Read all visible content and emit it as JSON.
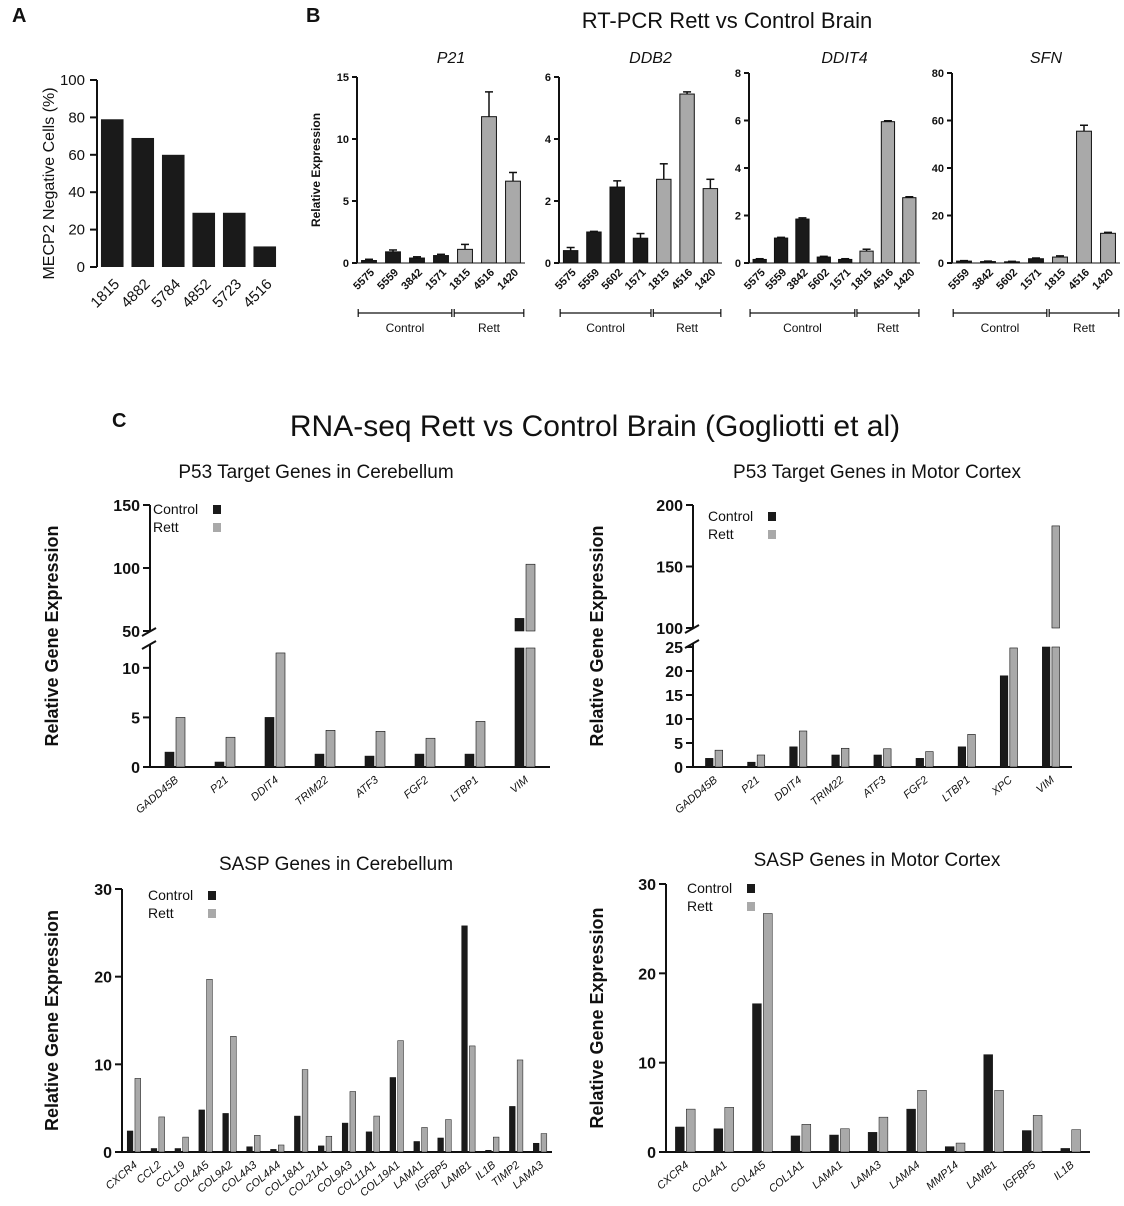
{
  "panels": {
    "a": "A",
    "b": "B",
    "c": "C"
  },
  "section_b_title": "RT-PCR Rett vs Control Brain",
  "section_c_title": "RNA-seq Rett vs Control Brain (Gogliotti et al)",
  "group_labels": {
    "control": "Control",
    "rett": "Rett"
  },
  "colors": {
    "control": "#1a1a1a",
    "rett": "#a9a9a9"
  },
  "chart_data": [
    {
      "id": "A",
      "type": "bar",
      "ylabel": "MECP2 Negative Cells  (%)",
      "ylim": [
        0,
        100
      ],
      "yticks": [
        0,
        20,
        40,
        60,
        80,
        100
      ],
      "categories": [
        "1815",
        "4882",
        "5784",
        "4852",
        "5723",
        "4516"
      ],
      "values": [
        79,
        69,
        60,
        29,
        29,
        11
      ]
    },
    {
      "id": "B1",
      "type": "bar",
      "title": "P21",
      "ylabel": "Relative Expression",
      "ylim": [
        0,
        15
      ],
      "yticks": [
        0,
        5,
        10,
        15
      ],
      "categories": [
        "5575",
        "5559",
        "3842",
        "1571",
        "1815",
        "4516",
        "1420"
      ],
      "groups": [
        "control",
        "control",
        "control",
        "control",
        "rett",
        "rett",
        "rett"
      ],
      "values": [
        0.2,
        0.9,
        0.4,
        0.6,
        1.1,
        11.8,
        6.6
      ],
      "errors": [
        0.1,
        0.15,
        0.1,
        0.1,
        0.4,
        2.0,
        0.7
      ]
    },
    {
      "id": "B2",
      "type": "bar",
      "title": "DDB2",
      "ylim": [
        0,
        6
      ],
      "yticks": [
        0,
        2,
        4,
        6
      ],
      "categories": [
        "5575",
        "5559",
        "5602",
        "1571",
        "1815",
        "4516",
        "1420"
      ],
      "groups": [
        "control",
        "control",
        "control",
        "control",
        "rett",
        "rett",
        "rett"
      ],
      "values": [
        0.4,
        1.0,
        2.45,
        0.8,
        2.7,
        5.45,
        2.4
      ],
      "errors": [
        0.1,
        0.02,
        0.2,
        0.15,
        0.5,
        0.07,
        0.3
      ]
    },
    {
      "id": "B3",
      "type": "bar",
      "title": "DDIT4",
      "ylim": [
        0,
        8
      ],
      "yticks": [
        0,
        2,
        4,
        6,
        8
      ],
      "categories": [
        "5575",
        "5559",
        "3842",
        "5602",
        "1571",
        "1815",
        "4516",
        "1420"
      ],
      "groups": [
        "control",
        "control",
        "control",
        "control",
        "control",
        "rett",
        "rett",
        "rett"
      ],
      "values": [
        0.15,
        1.05,
        1.85,
        0.25,
        0.15,
        0.5,
        5.95,
        2.75
      ],
      "errors": [
        0.03,
        0.03,
        0.05,
        0.03,
        0.03,
        0.08,
        0.04,
        0.04
      ]
    },
    {
      "id": "B4",
      "type": "bar",
      "title": "SFN",
      "ylim": [
        0,
        80
      ],
      "yticks": [
        0,
        20,
        40,
        60,
        80
      ],
      "categories": [
        "5559",
        "3842",
        "5602",
        "1571",
        "1815",
        "4516",
        "1420"
      ],
      "groups": [
        "control",
        "control",
        "control",
        "control",
        "rett",
        "rett",
        "rett"
      ],
      "values": [
        0.8,
        0.6,
        0.5,
        1.8,
        2.5,
        55.5,
        12.5
      ],
      "errors": [
        0.2,
        0.2,
        0.2,
        0.3,
        0.5,
        2.5,
        0.4
      ]
    },
    {
      "id": "C1",
      "type": "bar",
      "title": "P53 Target Genes in Cerebellum",
      "ylabel": "Relative Gene Expression",
      "legend": [
        "Control",
        "Rett"
      ],
      "categories": [
        "GADD45B",
        "P21",
        "DDIT4",
        "TRIM22",
        "ATF3",
        "FGF2",
        "LTBP1",
        "VIM"
      ],
      "series": [
        {
          "name": "Control",
          "values": [
            1.5,
            0.5,
            5.0,
            1.3,
            1.1,
            1.3,
            1.3,
            60
          ]
        },
        {
          "name": "Rett",
          "values": [
            5.0,
            3.0,
            11.5,
            3.7,
            3.6,
            2.9,
            4.6,
            103
          ]
        }
      ],
      "lower_ticks": [
        0,
        5,
        10
      ],
      "upper_ticks": [
        50,
        100,
        150
      ]
    },
    {
      "id": "C2",
      "type": "bar",
      "title": "P53 Target Genes in Motor Cortex",
      "ylabel": "Relative Gene Expression",
      "legend": [
        "Control",
        "Rett"
      ],
      "categories": [
        "GADD45B",
        "P21",
        "DDIT4",
        "TRIM22",
        "ATF3",
        "FGF2",
        "LTBP1",
        "XPC",
        "VIM"
      ],
      "series": [
        {
          "name": "Control",
          "values": [
            1.8,
            1.0,
            4.2,
            2.5,
            2.5,
            1.8,
            4.2,
            19,
            95
          ]
        },
        {
          "name": "Rett",
          "values": [
            3.5,
            2.5,
            7.5,
            3.9,
            3.8,
            3.2,
            6.8,
            24.8,
            183
          ]
        }
      ],
      "lower_ticks": [
        0,
        5,
        10,
        15,
        20,
        25
      ],
      "upper_ticks": [
        100,
        150,
        200
      ]
    },
    {
      "id": "C3",
      "type": "bar",
      "title": "SASP Genes in Cerebellum",
      "ylabel": "Relative Gene Expression",
      "legend": [
        "Control",
        "Rett"
      ],
      "ylim": [
        0,
        30
      ],
      "yticks": [
        0,
        10,
        20,
        30
      ],
      "categories": [
        "CXCR4",
        "CCL2",
        "CCL19",
        "COL4A5",
        "COL9A2",
        "COL4A3",
        "COL4A4",
        "COL18A1",
        "COL21A1",
        "COL9A3",
        "COL11A1",
        "COL19A1",
        "LAMA1",
        "IGFBP5",
        "LAMB1",
        "IL1B",
        "TIMP2",
        "LAMA3"
      ],
      "series": [
        {
          "name": "Control",
          "values": [
            2.4,
            0.4,
            0.4,
            4.8,
            4.4,
            0.6,
            0.3,
            4.1,
            0.7,
            3.3,
            2.3,
            8.5,
            1.2,
            1.6,
            25.8,
            0.2,
            5.2,
            1.0
          ]
        },
        {
          "name": "Rett",
          "values": [
            8.4,
            4.0,
            1.7,
            19.7,
            13.2,
            1.9,
            0.8,
            9.4,
            1.8,
            6.9,
            4.1,
            12.7,
            2.8,
            3.7,
            12.1,
            1.7,
            10.5,
            2.1
          ]
        }
      ]
    },
    {
      "id": "C4",
      "type": "bar",
      "title": "SASP Genes in Motor Cortex",
      "ylabel": "Relative Gene Expression",
      "legend": [
        "Control",
        "Rett"
      ],
      "ylim": [
        0,
        30
      ],
      "yticks": [
        0,
        10,
        20,
        30
      ],
      "categories": [
        "CXCR4",
        "COL4A1",
        "COL4A5",
        "COL1A1",
        "LAMA1",
        "LAMA3",
        "LAMA4",
        "MMP14",
        "LAMB1",
        "IGFBP5",
        "IL1B"
      ],
      "series": [
        {
          "name": "Control",
          "values": [
            2.8,
            2.6,
            16.6,
            1.8,
            1.9,
            2.2,
            4.8,
            0.6,
            10.9,
            2.4,
            0.4
          ]
        },
        {
          "name": "Rett",
          "values": [
            4.8,
            5.0,
            26.7,
            3.1,
            2.6,
            3.9,
            6.9,
            1.0,
            6.9,
            4.1,
            2.5
          ]
        }
      ]
    }
  ]
}
